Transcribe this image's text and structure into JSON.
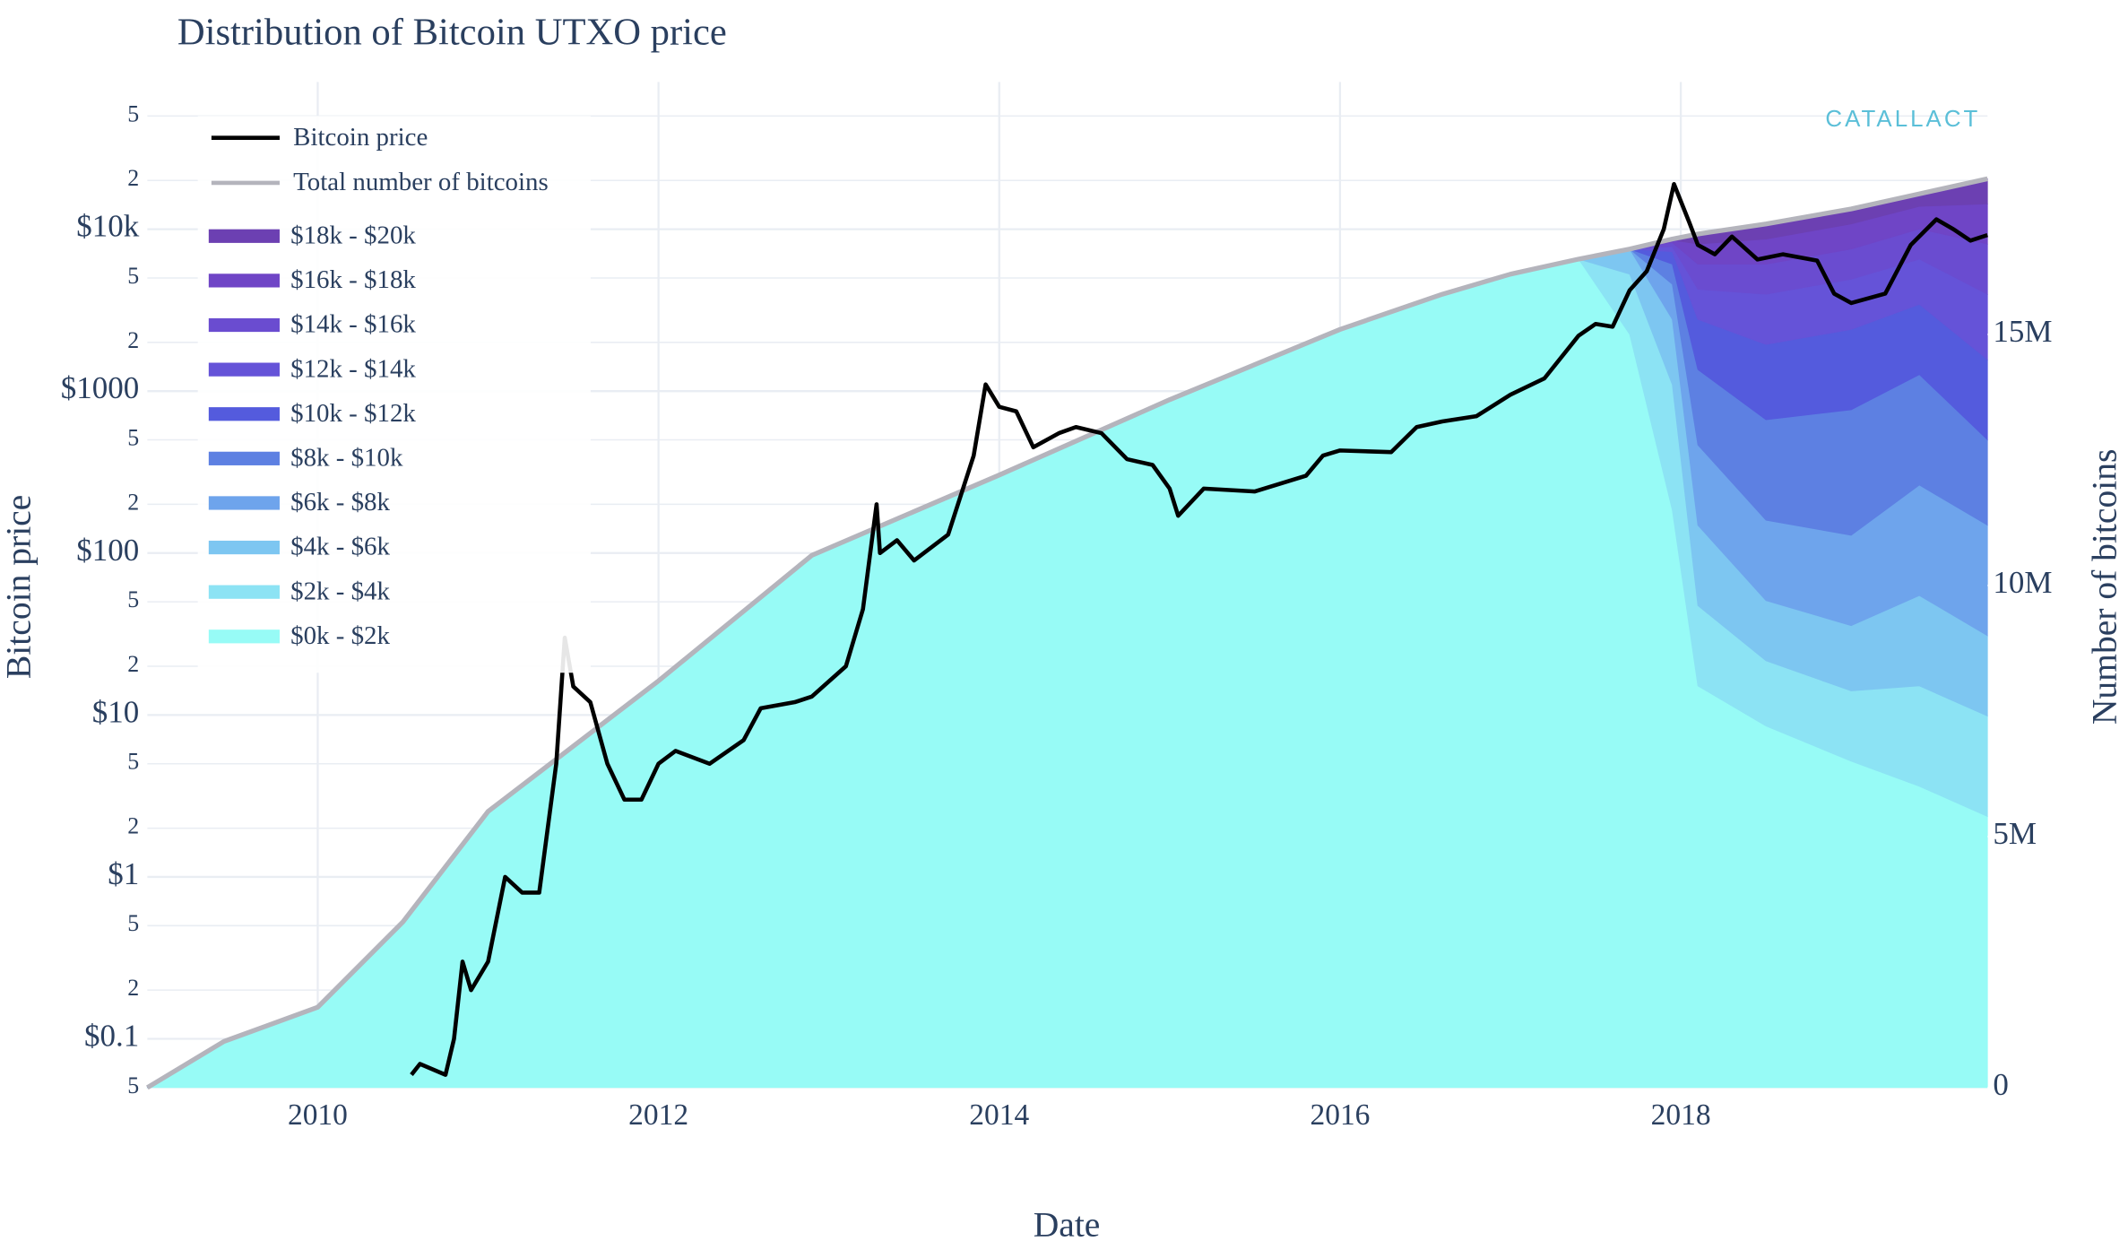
{
  "chart_data": {
    "type": "stacked_area_line",
    "title": "Distribution of Bitcoin UTXO price",
    "xlabel": "Date",
    "ylabel": "Bitcoin price",
    "y2label": "Number of bitcoins",
    "watermark": "CATALLACT",
    "y_scale": "log",
    "grid": true,
    "legend": "top-left",
    "xlim": [
      2009,
      2019.8
    ],
    "xticks": [
      2010,
      2012,
      2014,
      2016,
      2018
    ],
    "ylim": [
      0.05,
      50000
    ],
    "yticks": [
      {
        "value": 0.05,
        "label": "5"
      },
      {
        "value": 0.1,
        "label": "$0.1"
      },
      {
        "value": 0.2,
        "label": "2"
      },
      {
        "value": 0.5,
        "label": "5"
      },
      {
        "value": 1,
        "label": "$1"
      },
      2,
      5,
      {
        "value": 10,
        "label": "$10"
      },
      {
        "value": 20,
        "label": "2"
      },
      {
        "value": 50,
        "label": "5"
      },
      {
        "value": 100,
        "label": "$100"
      },
      {
        "value": 200,
        "label": "2"
      },
      {
        "value": 500,
        "label": "5"
      },
      {
        "value": 1000,
        "label": "$1000"
      },
      {
        "value": 2000,
        "label": "2"
      },
      {
        "value": 5000,
        "label": "5"
      },
      {
        "value": 10000,
        "label": "$10k"
      },
      {
        "value": 20000,
        "label": "2"
      },
      {
        "value": 50000,
        "label": "5"
      }
    ],
    "y2lim": [
      0,
      19350000
    ],
    "y2ticks": [
      0,
      {
        "value": 5000000,
        "label": "5M"
      },
      {
        "value": 10000000,
        "label": "10M"
      },
      {
        "value": 15000000,
        "label": "15M"
      }
    ],
    "x": [
      2009,
      2009.45,
      2010,
      2010.5,
      2011,
      2012,
      2012.9,
      2014,
      2015,
      2016,
      2016.6,
      2017,
      2017.4,
      2017.7,
      2017.95,
      2018.1,
      2018.5,
      2019,
      2019.4,
      2019.8
    ],
    "series": [
      {
        "name": "Bitcoin price",
        "color": "#000000",
        "kind": "line",
        "axis": "y",
        "x": [
          2010.55,
          2010.6,
          2010.75,
          2010.8,
          2010.85,
          2010.9,
          2011.0,
          2011.1,
          2011.2,
          2011.3,
          2011.4,
          2011.45,
          2011.5,
          2011.6,
          2011.7,
          2011.8,
          2011.9,
          2012.0,
          2012.1,
          2012.3,
          2012.5,
          2012.6,
          2012.8,
          2012.9,
          2013.1,
          2013.2,
          2013.28,
          2013.3,
          2013.4,
          2013.5,
          2013.7,
          2013.85,
          2013.92,
          2014.0,
          2014.1,
          2014.2,
          2014.35,
          2014.45,
          2014.6,
          2014.75,
          2014.9,
          2015.0,
          2015.05,
          2015.2,
          2015.5,
          2015.8,
          2015.9,
          2016.0,
          2016.3,
          2016.45,
          2016.6,
          2016.8,
          2017.0,
          2017.2,
          2017.4,
          2017.5,
          2017.6,
          2017.7,
          2017.8,
          2017.9,
          2017.96,
          2018.05,
          2018.1,
          2018.2,
          2018.3,
          2018.45,
          2018.6,
          2018.8,
          2018.9,
          2019.0,
          2019.2,
          2019.35,
          2019.5,
          2019.6,
          2019.7,
          2019.8
        ],
        "values": [
          0.06,
          0.07,
          0.06,
          0.1,
          0.3,
          0.2,
          0.3,
          1.0,
          0.8,
          0.8,
          5,
          30,
          15,
          12,
          5,
          3,
          3,
          5,
          6,
          5,
          7,
          11,
          12,
          13,
          20,
          45,
          200,
          100,
          120,
          90,
          130,
          400,
          1100,
          800,
          750,
          450,
          550,
          600,
          550,
          380,
          350,
          250,
          170,
          250,
          240,
          300,
          400,
          430,
          420,
          600,
          650,
          700,
          950,
          1200,
          2200,
          2600,
          2500,
          4200,
          5500,
          10000,
          19000,
          11000,
          8000,
          7000,
          9000,
          6500,
          7000,
          6400,
          4000,
          3500,
          4000,
          8000,
          11500,
          10000,
          8500,
          9200
        ]
      },
      {
        "name": "Total number of bitcoins",
        "color": "#b4b4bc",
        "kind": "line",
        "axis": "y2",
        "values": [
          0,
          920000,
          1600000,
          3300000,
          5500000,
          8100000,
          10600000,
          12200000,
          13700000,
          15100000,
          15800000,
          16200000,
          16500000,
          16700000,
          16900000,
          17000000,
          17200000,
          17500000,
          17800000,
          18100000
        ]
      },
      {
        "name": "$18k - $20k",
        "color": "#6c40b2",
        "kind": "band",
        "axis": "y2",
        "values": [
          0,
          0,
          0,
          0,
          0,
          0,
          0,
          0,
          0,
          0,
          0,
          0,
          0,
          0,
          20000,
          200000,
          300000,
          300000,
          250000,
          500000
        ]
      },
      {
        "name": "$16k - $18k",
        "color": "#6f45c6",
        "kind": "band",
        "axis": "y2",
        "values": [
          0,
          0,
          0,
          0,
          0,
          0,
          0,
          0,
          0,
          0,
          0,
          0,
          0,
          0,
          50000,
          400000,
          500000,
          500000,
          450000,
          800000
        ]
      },
      {
        "name": "$14k - $16k",
        "color": "#6a4cd0",
        "kind": "band",
        "axis": "y2",
        "values": [
          0,
          0,
          0,
          0,
          0,
          0,
          0,
          0,
          0,
          0,
          0,
          0,
          0,
          0,
          80000,
          500000,
          600000,
          600000,
          600000,
          1000000
        ]
      },
      {
        "name": "$12k - $14k",
        "color": "#6553d8",
        "kind": "band",
        "axis": "y2",
        "values": [
          0,
          0,
          0,
          0,
          0,
          0,
          0,
          0,
          0,
          0,
          0,
          0,
          0,
          0,
          100000,
          600000,
          1000000,
          1000000,
          900000,
          1300000
        ]
      },
      {
        "name": "$10k - $12k",
        "color": "#545bdd",
        "kind": "band",
        "axis": "y2",
        "values": [
          0,
          0,
          0,
          0,
          0,
          0,
          0,
          0,
          0,
          0,
          0,
          0,
          0,
          0,
          250000,
          1000000,
          1500000,
          1600000,
          1400000,
          1600000
        ]
      },
      {
        "name": "$8k - $10k",
        "color": "#5d80e2",
        "kind": "band",
        "axis": "y2",
        "values": [
          0,
          0,
          0,
          0,
          0,
          0,
          0,
          0,
          0,
          0,
          0,
          0,
          0,
          0,
          400000,
          1500000,
          2000000,
          2500000,
          2200000,
          1700000
        ]
      },
      {
        "name": "$6k - $8k",
        "color": "#6ea4ec",
        "kind": "band",
        "axis": "y2",
        "values": [
          0,
          0,
          0,
          0,
          0,
          0,
          0,
          0,
          0,
          0,
          0,
          0,
          0,
          0,
          700000,
          1600000,
          1600000,
          1800000,
          2200000,
          2200000
        ]
      },
      {
        "name": "$4k - $6k",
        "color": "#7dc6f1",
        "kind": "band",
        "axis": "y2",
        "values": [
          0,
          0,
          0,
          0,
          0,
          0,
          0,
          0,
          0,
          0,
          0,
          0,
          0,
          500000,
          1300000,
          1600000,
          1200000,
          1300000,
          1800000,
          1600000
        ]
      },
      {
        "name": "$2k - $4k",
        "color": "#8ce3f4",
        "kind": "band",
        "axis": "y2",
        "values": [
          0,
          0,
          0,
          0,
          0,
          0,
          0,
          0,
          0,
          0,
          0,
          0,
          0,
          1200000,
          2500000,
          1600000,
          1300000,
          1400000,
          2000000,
          2000000
        ]
      },
      {
        "name": "$0k - $2k",
        "color": "#97fbf6",
        "kind": "band",
        "axis": "y2",
        "values": [
          0,
          920000,
          1600000,
          3300000,
          5500000,
          8100000,
          10600000,
          12200000,
          13700000,
          15100000,
          15800000,
          16200000,
          16500000,
          15000000,
          11500000,
          8000000,
          7200000,
          6500000,
          6000000,
          5400000
        ]
      }
    ]
  }
}
